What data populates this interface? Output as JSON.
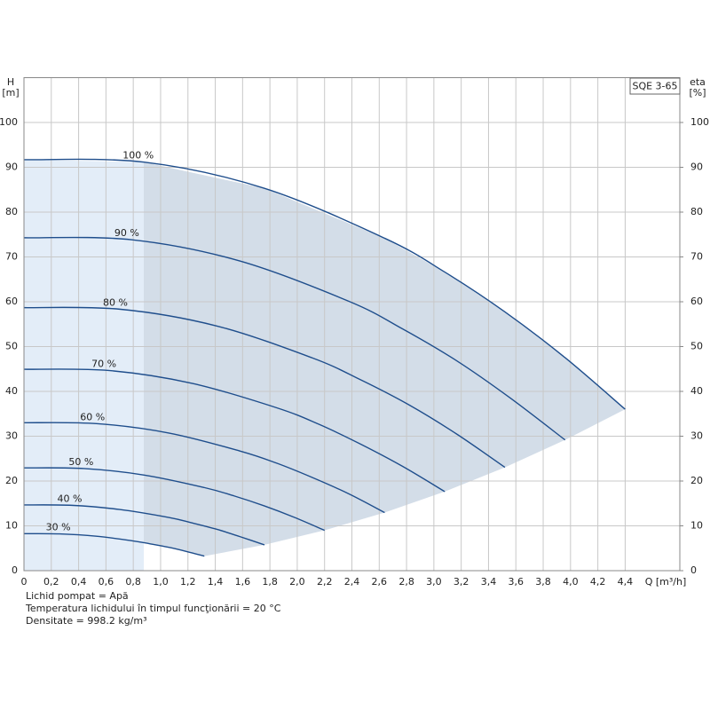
{
  "chart_data": {
    "type": "line",
    "x_label": "Q [m³/h]",
    "y_label": "H",
    "y_unit": "[m]",
    "y2_label": "eta",
    "y2_unit": "[%]",
    "model": "SQE 3-65",
    "notes": [
      "Lichid pompat = Apă",
      "Temperatura lichidului în timpul funcţionării = 20 °C",
      "Densitate = 998.2 kg/m³"
    ],
    "xlim": [
      0,
      4.8
    ],
    "ylim": [
      0,
      110
    ],
    "y2lim": [
      0,
      110
    ],
    "xticks": [
      0,
      {
        "value": 0.2,
        "label": "0,2"
      },
      {
        "value": 0.4,
        "label": "0,4"
      },
      {
        "value": 0.6,
        "label": "0,6"
      },
      {
        "value": 0.8,
        "label": "0,8"
      },
      {
        "value": 1.0,
        "label": "1,0"
      },
      {
        "value": 1.2,
        "label": "1,2"
      },
      {
        "value": 1.4,
        "label": "1,4"
      },
      {
        "value": 1.6,
        "label": "1,6"
      },
      {
        "value": 1.8,
        "label": "1,8"
      },
      {
        "value": 2.0,
        "label": "2,0"
      },
      {
        "value": 2.2,
        "label": "2,2"
      },
      {
        "value": 2.4,
        "label": "2,4"
      },
      {
        "value": 2.6,
        "label": "2,6"
      },
      {
        "value": 2.8,
        "label": "2,8"
      },
      {
        "value": 3.0,
        "label": "3,0"
      },
      {
        "value": 3.2,
        "label": "3,2"
      },
      {
        "value": 3.4,
        "label": "3,4"
      },
      {
        "value": 3.6,
        "label": "3,6"
      },
      {
        "value": 3.8,
        "label": "3,8"
      },
      {
        "value": 4.0,
        "label": "4,0"
      },
      {
        "value": 4.2,
        "label": "4,2"
      },
      {
        "value": 4.4,
        "label": "4,4"
      }
    ],
    "yticks": [
      0,
      10,
      20,
      30,
      40,
      50,
      60,
      70,
      80,
      90,
      100
    ],
    "y2ticks": [
      0,
      10,
      20,
      30,
      40,
      50,
      60,
      70,
      80,
      90,
      100
    ],
    "grid": true,
    "series": [
      {
        "name": "100 %",
        "color": "#1f4e8c",
        "x": [
          0,
          0.88,
          1.76,
          2.64,
          3.08,
          3.52,
          3.96,
          4.4
        ],
        "values": [
          91.7,
          91.15,
          85.31,
          74.17,
          66.62,
          57.74,
          47.53,
          36.01
        ]
      },
      {
        "name": "90 %",
        "color": "#1f4e8c",
        "x": [
          0,
          0.79,
          1.58,
          2.38,
          2.77,
          3.17,
          3.56,
          3.96
        ],
        "values": [
          74.28,
          73.83,
          69.1,
          60.08,
          53.96,
          46.77,
          38.5,
          29.17
        ]
      },
      {
        "name": "80 %",
        "color": "#1f4e8c",
        "x": [
          0,
          0.7,
          1.41,
          2.11,
          2.46,
          2.82,
          3.17,
          3.52
        ],
        "values": [
          58.69,
          58.34,
          54.6,
          47.47,
          42.64,
          36.95,
          30.42,
          23.05
        ]
      },
      {
        "name": "70 %",
        "color": "#1f4e8c",
        "x": [
          0,
          0.62,
          1.23,
          1.85,
          2.16,
          2.46,
          2.77,
          3.08
        ],
        "values": [
          44.93,
          44.66,
          41.8,
          36.34,
          32.64,
          28.29,
          23.29,
          17.64
        ]
      },
      {
        "name": "60 %",
        "color": "#1f4e8c",
        "x": [
          0,
          0.53,
          1.06,
          1.58,
          1.85,
          2.11,
          2.38,
          2.64
        ],
        "values": [
          33.01,
          32.81,
          30.71,
          26.7,
          23.98,
          20.79,
          17.11,
          12.96
        ]
      },
      {
        "name": "50 %",
        "color": "#1f4e8c",
        "x": [
          0,
          0.44,
          0.88,
          1.32,
          1.54,
          1.76,
          1.98,
          2.2
        ],
        "values": [
          22.93,
          22.79,
          21.33,
          18.54,
          16.66,
          14.44,
          11.88,
          9.0
        ]
      },
      {
        "name": "40 %",
        "color": "#1f4e8c",
        "x": [
          0,
          0.35,
          0.7,
          1.06,
          1.23,
          1.41,
          1.58,
          1.76
        ],
        "values": [
          14.67,
          14.58,
          13.65,
          11.87,
          10.66,
          9.24,
          7.6,
          5.76
        ]
      },
      {
        "name": "30 %",
        "color": "#1f4e8c",
        "x": [
          0,
          0.26,
          0.53,
          0.79,
          0.92,
          1.06,
          1.19,
          1.32
        ],
        "values": [
          8.25,
          8.2,
          7.68,
          6.68,
          6.0,
          5.2,
          4.28,
          3.24
        ]
      }
    ]
  }
}
